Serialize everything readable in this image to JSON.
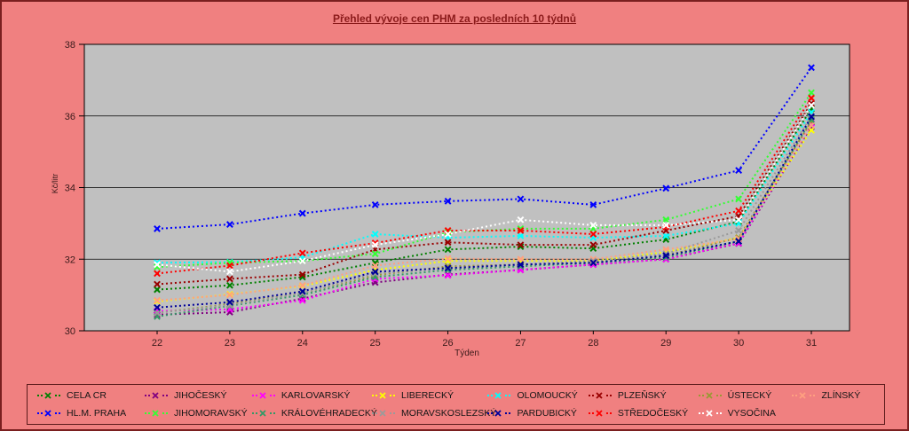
{
  "page": {
    "background": "#F08080",
    "frame_color": "#7A1F1F",
    "plot_background": "#C0C0C0"
  },
  "title": {
    "text": "Přehled vývoje cen PHM za posledních 10 týdnů",
    "color": "#8B1A1A"
  },
  "axes": {
    "x_title": "Týden",
    "y_title": "Kč/litr"
  },
  "chart_data": {
    "type": "line",
    "title": "Přehled vývoje cen PHM za posledních 10 týdnů",
    "xlabel": "Týden",
    "ylabel": "Kč/litr",
    "x": [
      22,
      23,
      24,
      25,
      26,
      27,
      28,
      29,
      30,
      31
    ],
    "ylim": [
      30,
      38
    ],
    "yticks": [
      30,
      32,
      34,
      36,
      38
    ],
    "grid": true,
    "line_style": "dotted",
    "marker": "x",
    "legend_position": "bottom",
    "series": [
      {
        "name": "CELA CR",
        "color": "#008000",
        "values": [
          31.15,
          31.27,
          31.5,
          31.9,
          32.27,
          32.35,
          32.3,
          32.55,
          33.05,
          36.2
        ]
      },
      {
        "name": "JIHOČESKÝ",
        "color": "#800080",
        "values": [
          30.45,
          30.52,
          30.9,
          31.35,
          31.57,
          31.7,
          31.85,
          32.0,
          32.44,
          35.7
        ]
      },
      {
        "name": "KARLOVARSKÝ",
        "color": "#FF00FF",
        "values": [
          30.55,
          30.6,
          30.85,
          31.45,
          31.55,
          31.7,
          31.85,
          32.0,
          32.45,
          35.8
        ]
      },
      {
        "name": "LIBERECKÝ",
        "color": "#FFFF00",
        "values": [
          30.82,
          31.02,
          31.25,
          31.7,
          31.95,
          31.95,
          31.95,
          32.2,
          32.6,
          35.6
        ]
      },
      {
        "name": "OLOMOUCKÝ",
        "color": "#00FFFF",
        "values": [
          31.9,
          31.92,
          32.05,
          32.7,
          32.6,
          32.65,
          32.6,
          32.65,
          33.0,
          36.1
        ]
      },
      {
        "name": "PLZEŇSKÝ",
        "color": "#990000",
        "values": [
          31.3,
          31.45,
          31.57,
          32.27,
          32.47,
          32.4,
          32.4,
          32.8,
          33.2,
          36.35
        ]
      },
      {
        "name": "ÚSTECKÝ",
        "color": "#999933",
        "values": [
          30.5,
          30.75,
          31.05,
          31.55,
          31.8,
          31.85,
          31.9,
          32.1,
          32.6,
          35.85
        ]
      },
      {
        "name": "ZLÍNSKÝ",
        "color": "#FFA080",
        "values": [
          30.85,
          31.0,
          31.27,
          31.82,
          32.02,
          32.0,
          32.0,
          32.27,
          32.57,
          35.74
        ]
      },
      {
        "name": "HL.M. PRAHA",
        "color": "#0000FF",
        "values": [
          32.85,
          32.97,
          33.28,
          33.52,
          33.62,
          33.68,
          33.52,
          33.98,
          34.48,
          37.35
        ]
      },
      {
        "name": "JIHOMORAVSKÝ",
        "color": "#33FF33",
        "values": [
          31.78,
          31.9,
          31.95,
          32.15,
          32.75,
          32.85,
          32.85,
          33.1,
          33.68,
          36.65
        ]
      },
      {
        "name": "KRÁLOVÉHRADECKÝ",
        "color": "#339966",
        "values": [
          30.4,
          30.7,
          31.0,
          31.5,
          31.7,
          31.8,
          31.9,
          32.05,
          32.5,
          35.9
        ]
      },
      {
        "name": "MORAVSKOSLEZSKÝ",
        "color": "#9A9A9A",
        "values": [
          30.5,
          30.72,
          31.05,
          31.6,
          31.75,
          31.85,
          31.95,
          32.15,
          32.8,
          36.0
        ]
      },
      {
        "name": "PARDUBICKÝ",
        "color": "#000099",
        "values": [
          30.65,
          30.8,
          31.1,
          31.65,
          31.75,
          31.85,
          31.9,
          32.1,
          32.5,
          35.98
        ]
      },
      {
        "name": "STŘEDOČESKÝ",
        "color": "#FF0000",
        "values": [
          31.6,
          31.82,
          32.17,
          32.45,
          32.8,
          32.8,
          32.7,
          32.9,
          33.35,
          36.5
        ]
      },
      {
        "name": "VYSOČINA",
        "color": "#FFFFFF",
        "values": [
          31.85,
          31.65,
          31.95,
          32.4,
          32.7,
          33.1,
          32.95,
          32.95,
          33.1,
          36.3
        ]
      }
    ]
  },
  "legend": {
    "rows": 2,
    "columns": 8
  }
}
